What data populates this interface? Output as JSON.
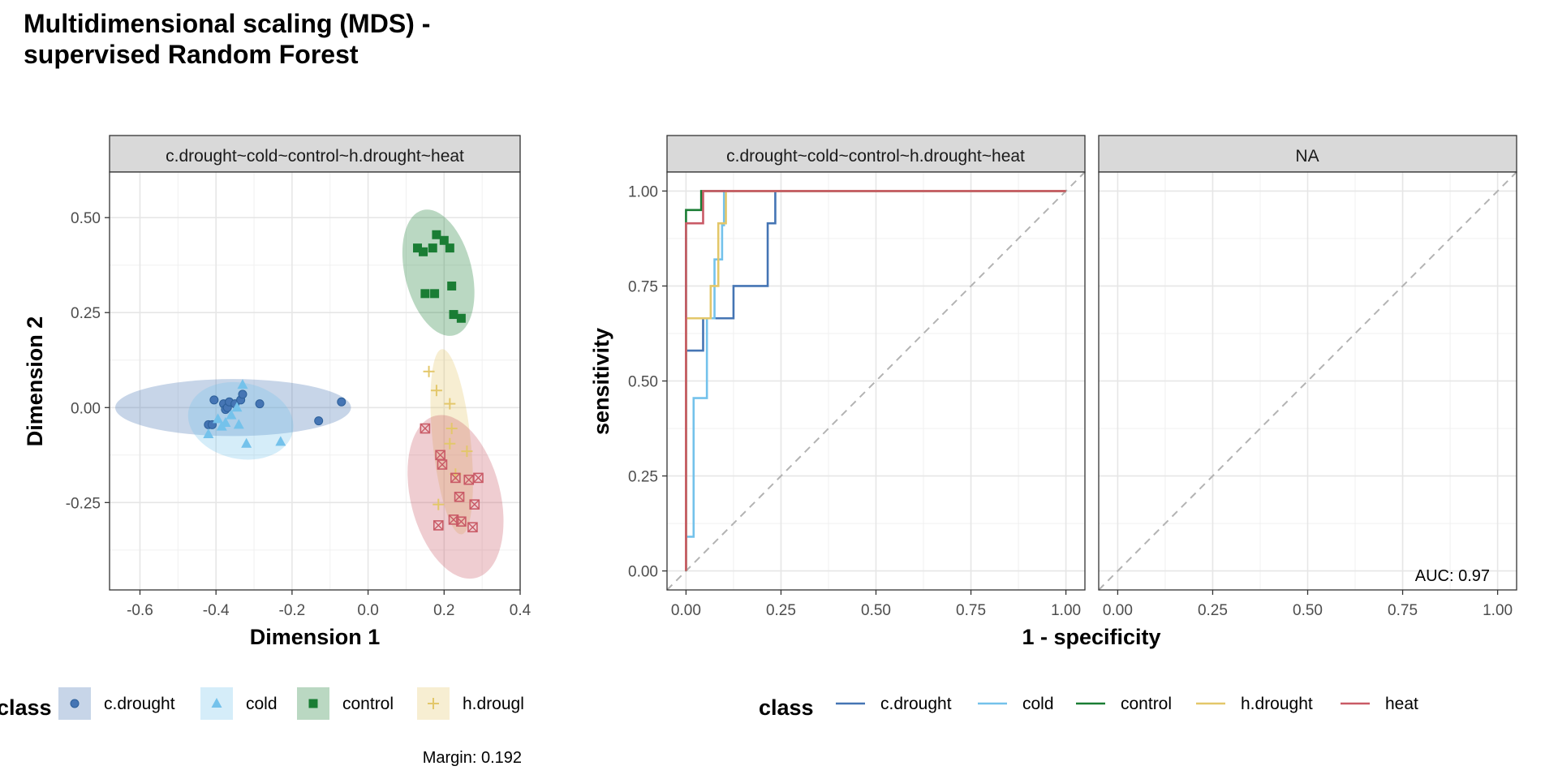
{
  "title_line1": "Multidimensional scaling (MDS) -",
  "title_line2": "supervised Random Forest",
  "colors": {
    "c.drought": "#4575b4",
    "cold": "#74c2eb",
    "control": "#1a7d34",
    "h.drought": "#e3c76a",
    "heat": "#c95a66"
  },
  "mds": {
    "strip": "c.drought~cold~control~h.drought~heat",
    "xlabel": "Dimension 1",
    "ylabel": "Dimension 2",
    "xticks": [
      "-0.6",
      "-0.4",
      "-0.2",
      "0.0",
      "0.2",
      "0.4"
    ],
    "yticks": [
      "-0.25",
      "0.00",
      "0.25",
      "0.50"
    ],
    "margin_note": "Margin: 0.192"
  },
  "roc": {
    "strip_left": "c.drought~cold~control~h.drought~heat",
    "strip_right": "NA",
    "xlabel": "1 - specificity",
    "ylabel": "sensitivity",
    "xticks_left": [
      "0.00",
      "0.25",
      "0.50",
      "0.75",
      "1.00"
    ],
    "xticks_right": [
      "0.00",
      "0.25",
      "0.50",
      "0.75",
      "1.00"
    ],
    "yticks": [
      "0.00",
      "0.25",
      "0.50",
      "0.75",
      "1.00"
    ],
    "auc_label": "AUC: 0.97"
  },
  "legend_mds": {
    "title": "class",
    "items": [
      {
        "label": "c.drought",
        "key": "c.drought",
        "shape": "circle"
      },
      {
        "label": "cold",
        "key": "cold",
        "shape": "triangle"
      },
      {
        "label": "control",
        "key": "control",
        "shape": "square"
      },
      {
        "label": "h.drougl",
        "key": "h.drought",
        "shape": "plus"
      }
    ]
  },
  "legend_roc": {
    "title": "class",
    "items": [
      {
        "label": "c.drought",
        "key": "c.drought"
      },
      {
        "label": "cold",
        "key": "cold"
      },
      {
        "label": "control",
        "key": "control"
      },
      {
        "label": "h.drought",
        "key": "h.drought"
      },
      {
        "label": "heat",
        "key": "heat"
      }
    ]
  },
  "chart_data": [
    {
      "type": "scatter",
      "title": "Multidimensional scaling (MDS) - supervised Random Forest",
      "xlabel": "Dimension 1",
      "ylabel": "Dimension 2",
      "xlim": [
        -0.68,
        0.4
      ],
      "ylim": [
        -0.48,
        0.62
      ],
      "grid": true,
      "legend_position": "bottom",
      "series": [
        {
          "name": "c.drought",
          "shape": "circle",
          "x": [
            -0.405,
            -0.42,
            -0.41,
            -0.38,
            -0.375,
            -0.37,
            -0.365,
            -0.35,
            -0.335,
            -0.33,
            -0.285,
            -0.13,
            -0.07
          ],
          "y": [
            0.02,
            -0.045,
            -0.045,
            0.01,
            -0.005,
            0.0,
            0.015,
            0.01,
            0.02,
            0.035,
            0.01,
            -0.035,
            0.015
          ]
        },
        {
          "name": "cold",
          "shape": "triangle",
          "x": [
            -0.42,
            -0.395,
            -0.385,
            -0.375,
            -0.36,
            -0.345,
            -0.34,
            -0.33,
            -0.32,
            -0.23
          ],
          "y": [
            -0.07,
            -0.03,
            -0.05,
            -0.04,
            -0.02,
            0.0,
            -0.045,
            0.06,
            -0.095,
            -0.09
          ]
        },
        {
          "name": "control",
          "shape": "square",
          "x": [
            0.13,
            0.145,
            0.15,
            0.17,
            0.175,
            0.18,
            0.2,
            0.215,
            0.22,
            0.225,
            0.245
          ],
          "y": [
            0.42,
            0.41,
            0.3,
            0.42,
            0.3,
            0.455,
            0.44,
            0.42,
            0.32,
            0.245,
            0.235
          ]
        },
        {
          "name": "h.drought",
          "shape": "plus",
          "x": [
            0.16,
            0.18,
            0.215,
            0.22,
            0.215,
            0.185,
            0.26,
            0.23
          ],
          "y": [
            0.095,
            0.045,
            0.01,
            -0.055,
            -0.095,
            -0.255,
            -0.115,
            -0.175
          ]
        },
        {
          "name": "heat",
          "shape": "boxed-x",
          "x": [
            0.15,
            0.19,
            0.195,
            0.23,
            0.245,
            0.24,
            0.265,
            0.28,
            0.29,
            0.225,
            0.275,
            0.185
          ],
          "y": [
            -0.055,
            -0.125,
            -0.15,
            -0.185,
            -0.3,
            -0.235,
            -0.19,
            -0.255,
            -0.185,
            -0.295,
            -0.315,
            -0.31
          ]
        }
      ]
    },
    {
      "type": "line",
      "xlabel": "1 - specificity",
      "ylabel": "sensitivity",
      "xlim": [
        -0.05,
        1.05
      ],
      "ylim": [
        -0.05,
        1.05
      ],
      "grid": true,
      "legend_position": "bottom",
      "facets": [
        "c.drought~cold~control~h.drought~heat",
        "NA"
      ],
      "annotation": "AUC: 0.97",
      "series": [
        {
          "name": "c.drought",
          "x": [
            0,
            0,
            0.045,
            0.045,
            0.125,
            0.125,
            0.215,
            0.215,
            0.235,
            0.235,
            1
          ],
          "y": [
            0,
            0.58,
            0.58,
            0.665,
            0.665,
            0.75,
            0.75,
            0.915,
            0.915,
            1,
            1
          ]
        },
        {
          "name": "cold",
          "x": [
            0,
            0,
            0.02,
            0.02,
            0.055,
            0.055,
            0.075,
            0.075,
            0.095,
            0.095,
            0.1,
            0.1,
            1
          ],
          "y": [
            0,
            0.09,
            0.09,
            0.455,
            0.455,
            0.665,
            0.665,
            0.82,
            0.82,
            0.91,
            0.91,
            1,
            1
          ]
        },
        {
          "name": "control",
          "x": [
            0,
            0,
            0.04,
            0.04,
            1
          ],
          "y": [
            0,
            0.95,
            0.95,
            1,
            1
          ]
        },
        {
          "name": "h.drought",
          "x": [
            0,
            0,
            0.065,
            0.065,
            0.085,
            0.085,
            0.105,
            0.105,
            1
          ],
          "y": [
            0,
            0.665,
            0.665,
            0.75,
            0.75,
            0.915,
            0.915,
            1,
            1
          ]
        },
        {
          "name": "heat",
          "x": [
            0,
            0,
            0.045,
            0.045,
            1
          ],
          "y": [
            0,
            0.915,
            0.915,
            1,
            1
          ]
        }
      ]
    }
  ]
}
